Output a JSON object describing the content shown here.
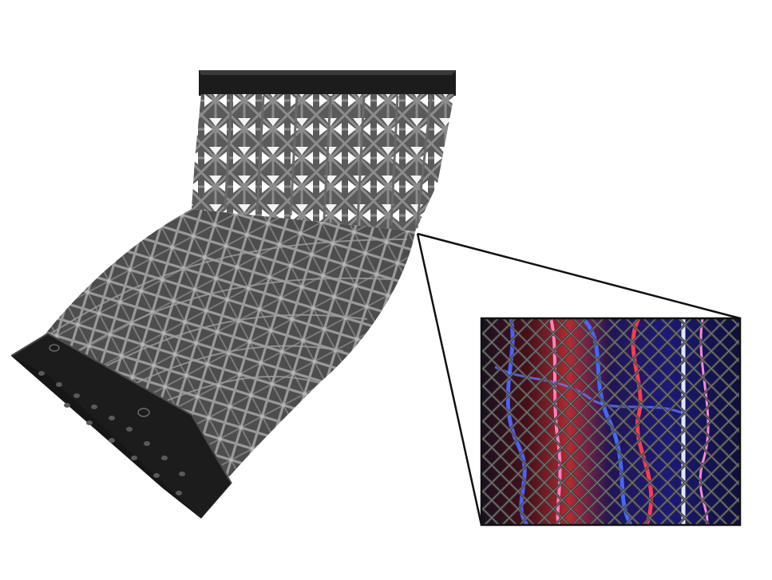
{
  "figure": {
    "background_color": "#ffffff",
    "colors": {
      "end_cap": "#1c1c1c",
      "lattice_strut": "#6e6e6e",
      "lattice_strut_light": "#9a9a9a",
      "lattice_gap": "#ffffff",
      "zoom_lines": "#111111",
      "inset_frame": "#111111",
      "inset_background_dark": "#0d0f1e",
      "inset_blue": "#3a4cff",
      "inset_red": "#e23a3a",
      "inset_pink": "#ff6fae",
      "inset_white_blue": "#cfd8ff",
      "inset_mesh": "#3c3c3c"
    },
    "icons": {
      "main_object": "curved-lattice-tube-icon",
      "zoom_inset": "photo-inset-icon"
    }
  }
}
